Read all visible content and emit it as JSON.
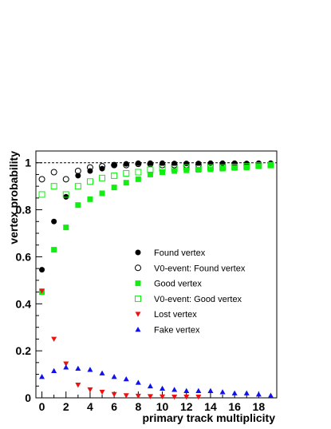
{
  "chart_data": {
    "type": "scatter",
    "xlabel": "primary track multiplicity",
    "ylabel": "vertex probability",
    "xlim": [
      -0.5,
      19.5
    ],
    "ylim": [
      0,
      1.05
    ],
    "x_ticks": [
      0,
      2,
      4,
      6,
      8,
      10,
      12,
      14,
      16,
      18
    ],
    "y_ticks": [
      0,
      0.2,
      0.4,
      0.6,
      0.8,
      1
    ],
    "y_tick_labels": [
      "0",
      "0.2",
      "0.4",
      "0.6",
      "0.8",
      "1"
    ],
    "reference_line": 1.0,
    "grid": false,
    "legend_position": "center-right",
    "series": [
      {
        "name": "Found vertex",
        "marker": "filled-circle",
        "color": "#000000",
        "x": [
          0,
          1,
          2,
          3,
          4,
          5,
          6,
          7,
          8,
          9,
          10,
          11,
          12,
          13,
          14,
          15,
          16,
          17,
          18,
          19
        ],
        "y": [
          0.545,
          0.75,
          0.855,
          0.945,
          0.965,
          0.975,
          0.99,
          0.995,
          0.998,
          0.998,
          0.998,
          0.997,
          0.997,
          0.997,
          0.998,
          0.998,
          0.998,
          0.997,
          0.998,
          0.998
        ]
      },
      {
        "name": "V0-event: Found vertex",
        "marker": "open-circle",
        "color": "#000000",
        "x": [
          0,
          1,
          2,
          3,
          4,
          5,
          6,
          7,
          8,
          9,
          10,
          11,
          12,
          13,
          14,
          15,
          16,
          17,
          18,
          19
        ],
        "y": [
          0.93,
          0.96,
          0.93,
          0.965,
          0.98,
          0.985,
          0.99,
          0.99,
          0.995,
          0.995,
          0.99,
          0.99,
          0.99,
          0.99,
          0.99,
          0.99,
          0.995,
          0.99,
          0.995,
          0.995
        ]
      },
      {
        "name": "Good vertex",
        "marker": "filled-square",
        "color": "#11ee11",
        "x": [
          0,
          1,
          2,
          3,
          4,
          5,
          6,
          7,
          8,
          9,
          10,
          11,
          12,
          13,
          14,
          15,
          16,
          17,
          18,
          19
        ],
        "y": [
          0.45,
          0.63,
          0.725,
          0.82,
          0.845,
          0.87,
          0.895,
          0.915,
          0.93,
          0.95,
          0.96,
          0.965,
          0.968,
          0.97,
          0.972,
          0.975,
          0.978,
          0.98,
          0.985,
          0.99
        ]
      },
      {
        "name": "V0-event: Good vertex",
        "marker": "open-square",
        "color": "#11ee11",
        "x": [
          0,
          1,
          2,
          3,
          4,
          5,
          6,
          7,
          8,
          9,
          10,
          11,
          12,
          13,
          14,
          15,
          16,
          17,
          18,
          19
        ],
        "y": [
          0.865,
          0.9,
          0.865,
          0.9,
          0.92,
          0.935,
          0.945,
          0.955,
          0.96,
          0.97,
          0.975,
          0.975,
          0.98,
          0.975,
          0.98,
          0.98,
          0.982,
          0.985,
          0.988,
          0.99
        ]
      },
      {
        "name": "Lost vertex",
        "marker": "filled-triangle-down",
        "color": "#ee1111",
        "x": [
          0,
          1,
          2,
          3,
          4,
          5,
          6,
          7,
          8,
          9,
          10,
          11,
          12,
          13,
          14,
          15,
          16,
          17,
          18,
          19
        ],
        "y": [
          0.455,
          0.25,
          0.145,
          0.055,
          0.035,
          0.025,
          0.015,
          0.01,
          0.008,
          0.006,
          0.005,
          0.004,
          0.004,
          0.004,
          0.003,
          0.003,
          0.003,
          0.003,
          0.002,
          0.002
        ]
      },
      {
        "name": "Fake vertex",
        "marker": "filled-triangle-up",
        "color": "#1111ee",
        "x": [
          0,
          1,
          2,
          3,
          4,
          5,
          6,
          7,
          8,
          9,
          10,
          11,
          12,
          13,
          14,
          15,
          16,
          17,
          18,
          19
        ],
        "y": [
          0.09,
          0.115,
          0.13,
          0.125,
          0.12,
          0.105,
          0.09,
          0.08,
          0.065,
          0.05,
          0.04,
          0.035,
          0.03,
          0.03,
          0.03,
          0.025,
          0.02,
          0.02,
          0.015,
          0.01
        ]
      }
    ]
  }
}
